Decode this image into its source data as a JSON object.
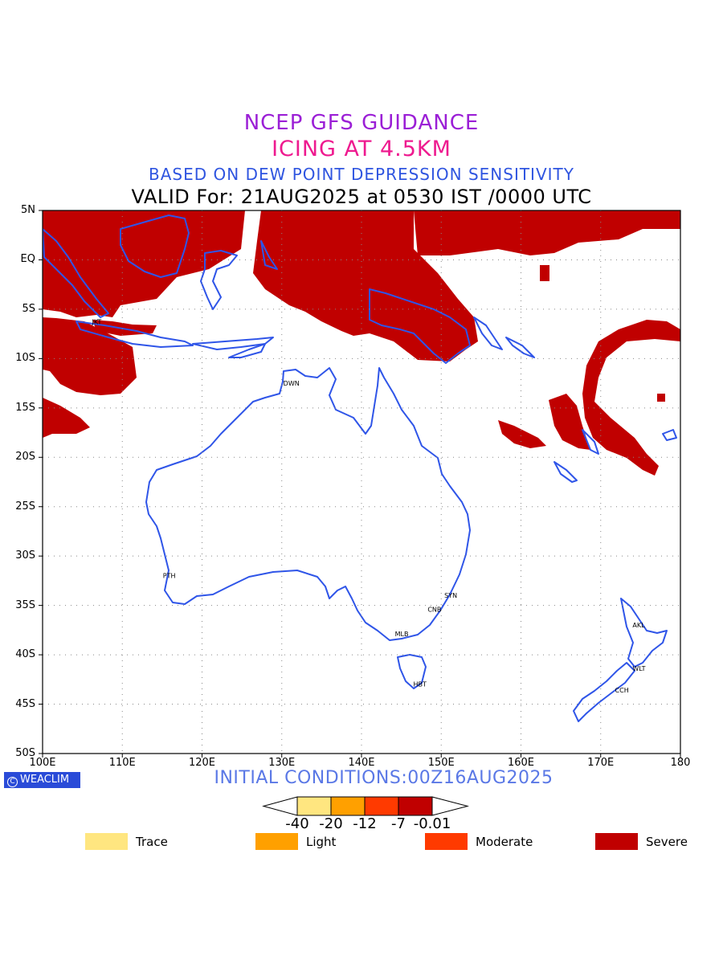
{
  "titles": {
    "line1": "NCEP GFS GUIDANCE",
    "line2": "ICING AT 4.5KM",
    "line3": "BASED ON DEW POINT DEPRESSION SENSITIVITY",
    "line4": "VALID For: 21AUG2025 at 0530 IST /0000 UTC"
  },
  "axes": {
    "lon_labels": [
      "100E",
      "110E",
      "120E",
      "130E",
      "140E",
      "150E",
      "160E",
      "170E",
      "180"
    ],
    "lat_labels": [
      "5N",
      "EQ",
      "5S",
      "10S",
      "15S",
      "20S",
      "25S",
      "30S",
      "35S",
      "40S",
      "45S",
      "50S"
    ],
    "lon_range": [
      100,
      180
    ],
    "lat_range": [
      5,
      -50
    ],
    "grid": "dotted"
  },
  "stations": [
    {
      "code": "JKT",
      "lon": 107,
      "lat": -6.2
    },
    {
      "code": "DWN",
      "lon": 131,
      "lat": -12.4
    },
    {
      "code": "PTH",
      "lon": 115.9,
      "lat": -31.9
    },
    {
      "code": "SYN",
      "lon": 151.2,
      "lat": -33.9
    },
    {
      "code": "CNB",
      "lon": 149.1,
      "lat": -35.3
    },
    {
      "code": "MLB",
      "lon": 145,
      "lat": -37.8
    },
    {
      "code": "HBT",
      "lon": 147.3,
      "lat": -42.9
    },
    {
      "code": "AKL",
      "lon": 174.8,
      "lat": -36.9
    },
    {
      "code": "WLT",
      "lon": 174.8,
      "lat": -41.3
    },
    {
      "code": "CCH",
      "lon": 172.6,
      "lat": -43.5
    }
  ],
  "logo": "WEACLIM",
  "logo_icon": "copyright-circle-icon",
  "initial_conditions": "INITIAL CONDITIONS:00Z16AUG2025",
  "colorbar": {
    "ticks": [
      "-40",
      "-20",
      "-12",
      "-7",
      "-0.01"
    ],
    "colors": [
      "#ffe680",
      "#ffa000",
      "#ff3a00",
      "#c00000"
    ]
  },
  "legend": [
    {
      "label": "Trace",
      "color": "#ffe680"
    },
    {
      "label": "Light",
      "color": "#ffa000"
    },
    {
      "label": "Moderate",
      "color": "#ff3a00"
    },
    {
      "label": "Severe",
      "color": "#c00000"
    }
  ],
  "colors": {
    "icing_fill": "#c00000",
    "coastline": "#2f55e8"
  }
}
